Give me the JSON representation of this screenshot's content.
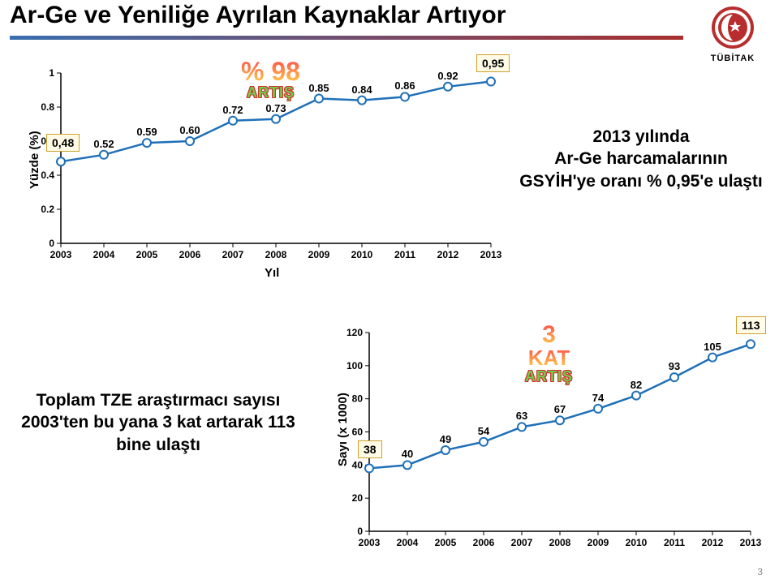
{
  "title": "Ar-Ge ve Yeniliğe Ayrılan Kaynaklar Artıyor",
  "logo": {
    "text": "TÜBİTAK"
  },
  "page_number": "3",
  "top_chart": {
    "type": "line",
    "xlabel": "Yıl",
    "ylabel": "Yüzde (%)",
    "categories": [
      "2003",
      "2004",
      "2005",
      "2006",
      "2007",
      "2008",
      "2009",
      "2010",
      "2011",
      "2012",
      "2013"
    ],
    "values": [
      0.48,
      0.52,
      0.59,
      0.6,
      0.72,
      0.73,
      0.85,
      0.84,
      0.86,
      0.92,
      0.95
    ],
    "value_labels": [
      "",
      "0.52",
      "0.59",
      "0.60",
      "0.72",
      "0.73",
      "0.85",
      "0.84",
      "0.86",
      "0.92",
      ""
    ],
    "line_color": "#1f70b8",
    "marker_fill": "#ffffff",
    "marker_stroke": "#1f70b8",
    "marker_r": 5,
    "line_width": 2.5,
    "y_ticks": [
      0,
      0.2,
      0.4,
      0.6,
      0.8,
      1
    ],
    "y_tick_labels": [
      "0",
      "0.2",
      "0.4",
      "0.6",
      "0.8",
      "1"
    ],
    "background_color": "#ffffff",
    "big_annotation": {
      "num": "% 98",
      "word": "ARTIŞ"
    },
    "first_box": "0,48",
    "last_box": "0,95"
  },
  "top_side_text": "2013 yılında\nAr-Ge harcamalarının GSYİH'ye oranı % 0,95'e ulaştı",
  "bottom_chart": {
    "type": "line",
    "xlabel": "",
    "ylabel": "Sayı (x 1000)",
    "categories": [
      "2003",
      "2004",
      "2005",
      "2006",
      "2007",
      "2008",
      "2009",
      "2010",
      "2011",
      "2012",
      "2013"
    ],
    "values": [
      38,
      40,
      49,
      54,
      63,
      67,
      74,
      82,
      93,
      105,
      113
    ],
    "value_labels": [
      "",
      "40",
      "49",
      "54",
      "63",
      "67",
      "74",
      "82",
      "93",
      "105",
      ""
    ],
    "line_color": "#1f70b8",
    "marker_fill": "#ffffff",
    "marker_stroke": "#1f70b8",
    "marker_r": 5,
    "line_width": 2.5,
    "y_ticks": [
      0,
      20,
      40,
      60,
      80,
      100,
      120
    ],
    "y_tick_labels": [
      "0",
      "20",
      "40",
      "60",
      "80",
      "100",
      "120"
    ],
    "background_color": "#ffffff",
    "big_annotation": {
      "num_top": "3",
      "num_bottom": "KAT",
      "word": "ARTIŞ"
    },
    "first_box": "38",
    "last_box": "113"
  },
  "bottom_side_text": "Toplam TZE araştırmacı sayısı 2003'ten bu yana 3 kat artarak 113 bine ulaştı"
}
